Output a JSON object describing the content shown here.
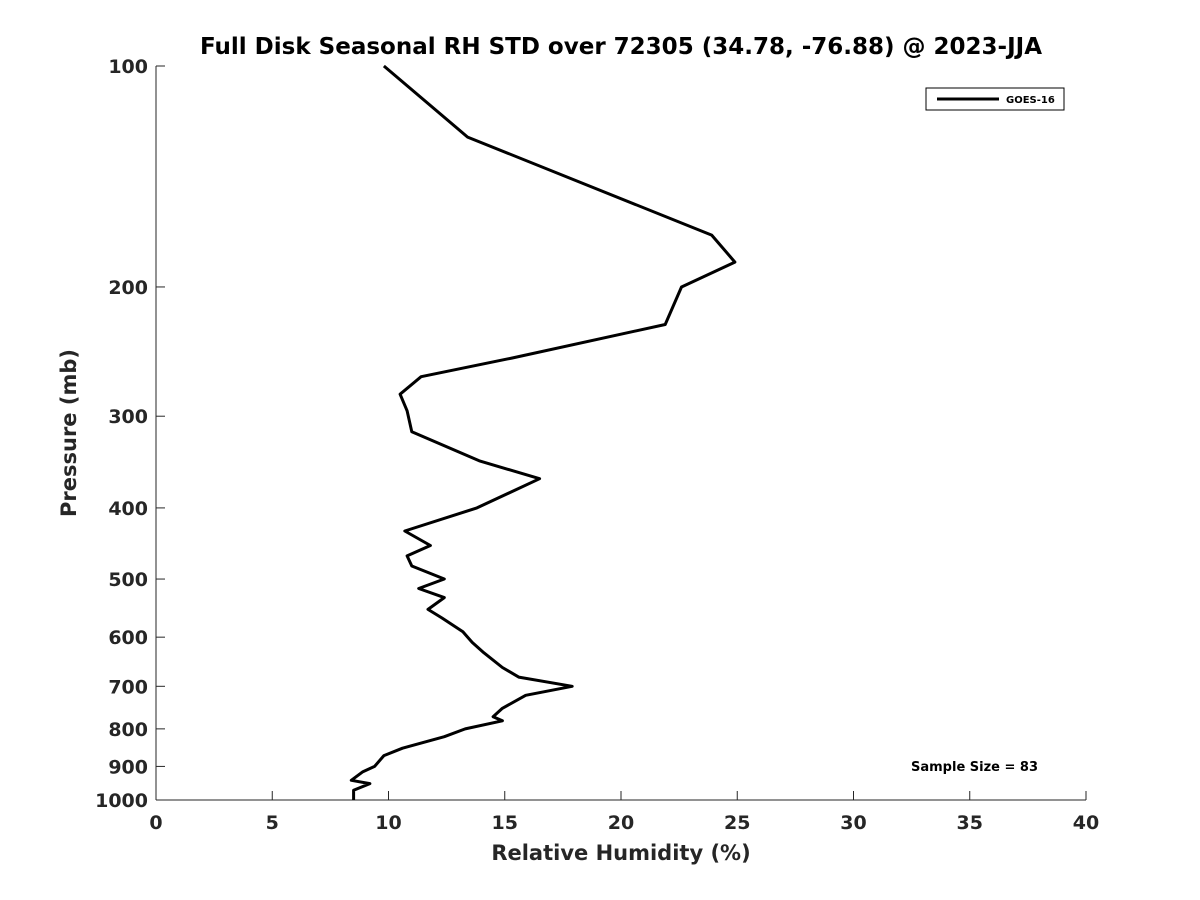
{
  "chart_data": {
    "type": "line",
    "title": "Full Disk Seasonal RH STD over 72305 (34.78, -76.88) @ 2023-JJA",
    "xlabel": "Relative Humidity (%)",
    "ylabel": "Pressure (mb)",
    "xlim": [
      0,
      40
    ],
    "ylim": [
      100,
      1000
    ],
    "yscale": "log",
    "y_reversed": true,
    "grid": false,
    "x_ticks": [
      0,
      5,
      10,
      15,
      20,
      25,
      30,
      35,
      40
    ],
    "y_ticks": [
      100,
      200,
      300,
      400,
      500,
      600,
      700,
      800,
      900,
      1000
    ],
    "legend": {
      "position": "top-right",
      "entries": [
        "GOES-16"
      ]
    },
    "annotation": "Sample Size = 83",
    "series": [
      {
        "name": "GOES-16",
        "color": "#000000",
        "x": [
          9.8,
          13.4,
          23.9,
          24.9,
          22.6,
          21.9,
          15.3,
          11.4,
          10.5,
          10.8,
          11.0,
          13.9,
          16.5,
          13.8,
          10.7,
          11.8,
          10.8,
          11.0,
          12.4,
          11.3,
          12.4,
          11.7,
          12.3,
          13.2,
          13.6,
          14.1,
          14.9,
          15.6,
          17.9,
          15.9,
          14.9,
          14.5,
          14.9,
          13.3,
          12.4,
          10.6,
          9.8,
          9.4,
          8.9,
          8.4,
          9.2,
          8.5,
          8.5
        ],
        "y": [
          100,
          125,
          170,
          185,
          200,
          225,
          250,
          265,
          280,
          295,
          315,
          345,
          365,
          400,
          430,
          450,
          465,
          480,
          500,
          515,
          530,
          550,
          565,
          590,
          610,
          630,
          660,
          680,
          700,
          720,
          750,
          770,
          780,
          800,
          820,
          850,
          870,
          900,
          915,
          940,
          950,
          970,
          1000
        ]
      }
    ]
  }
}
